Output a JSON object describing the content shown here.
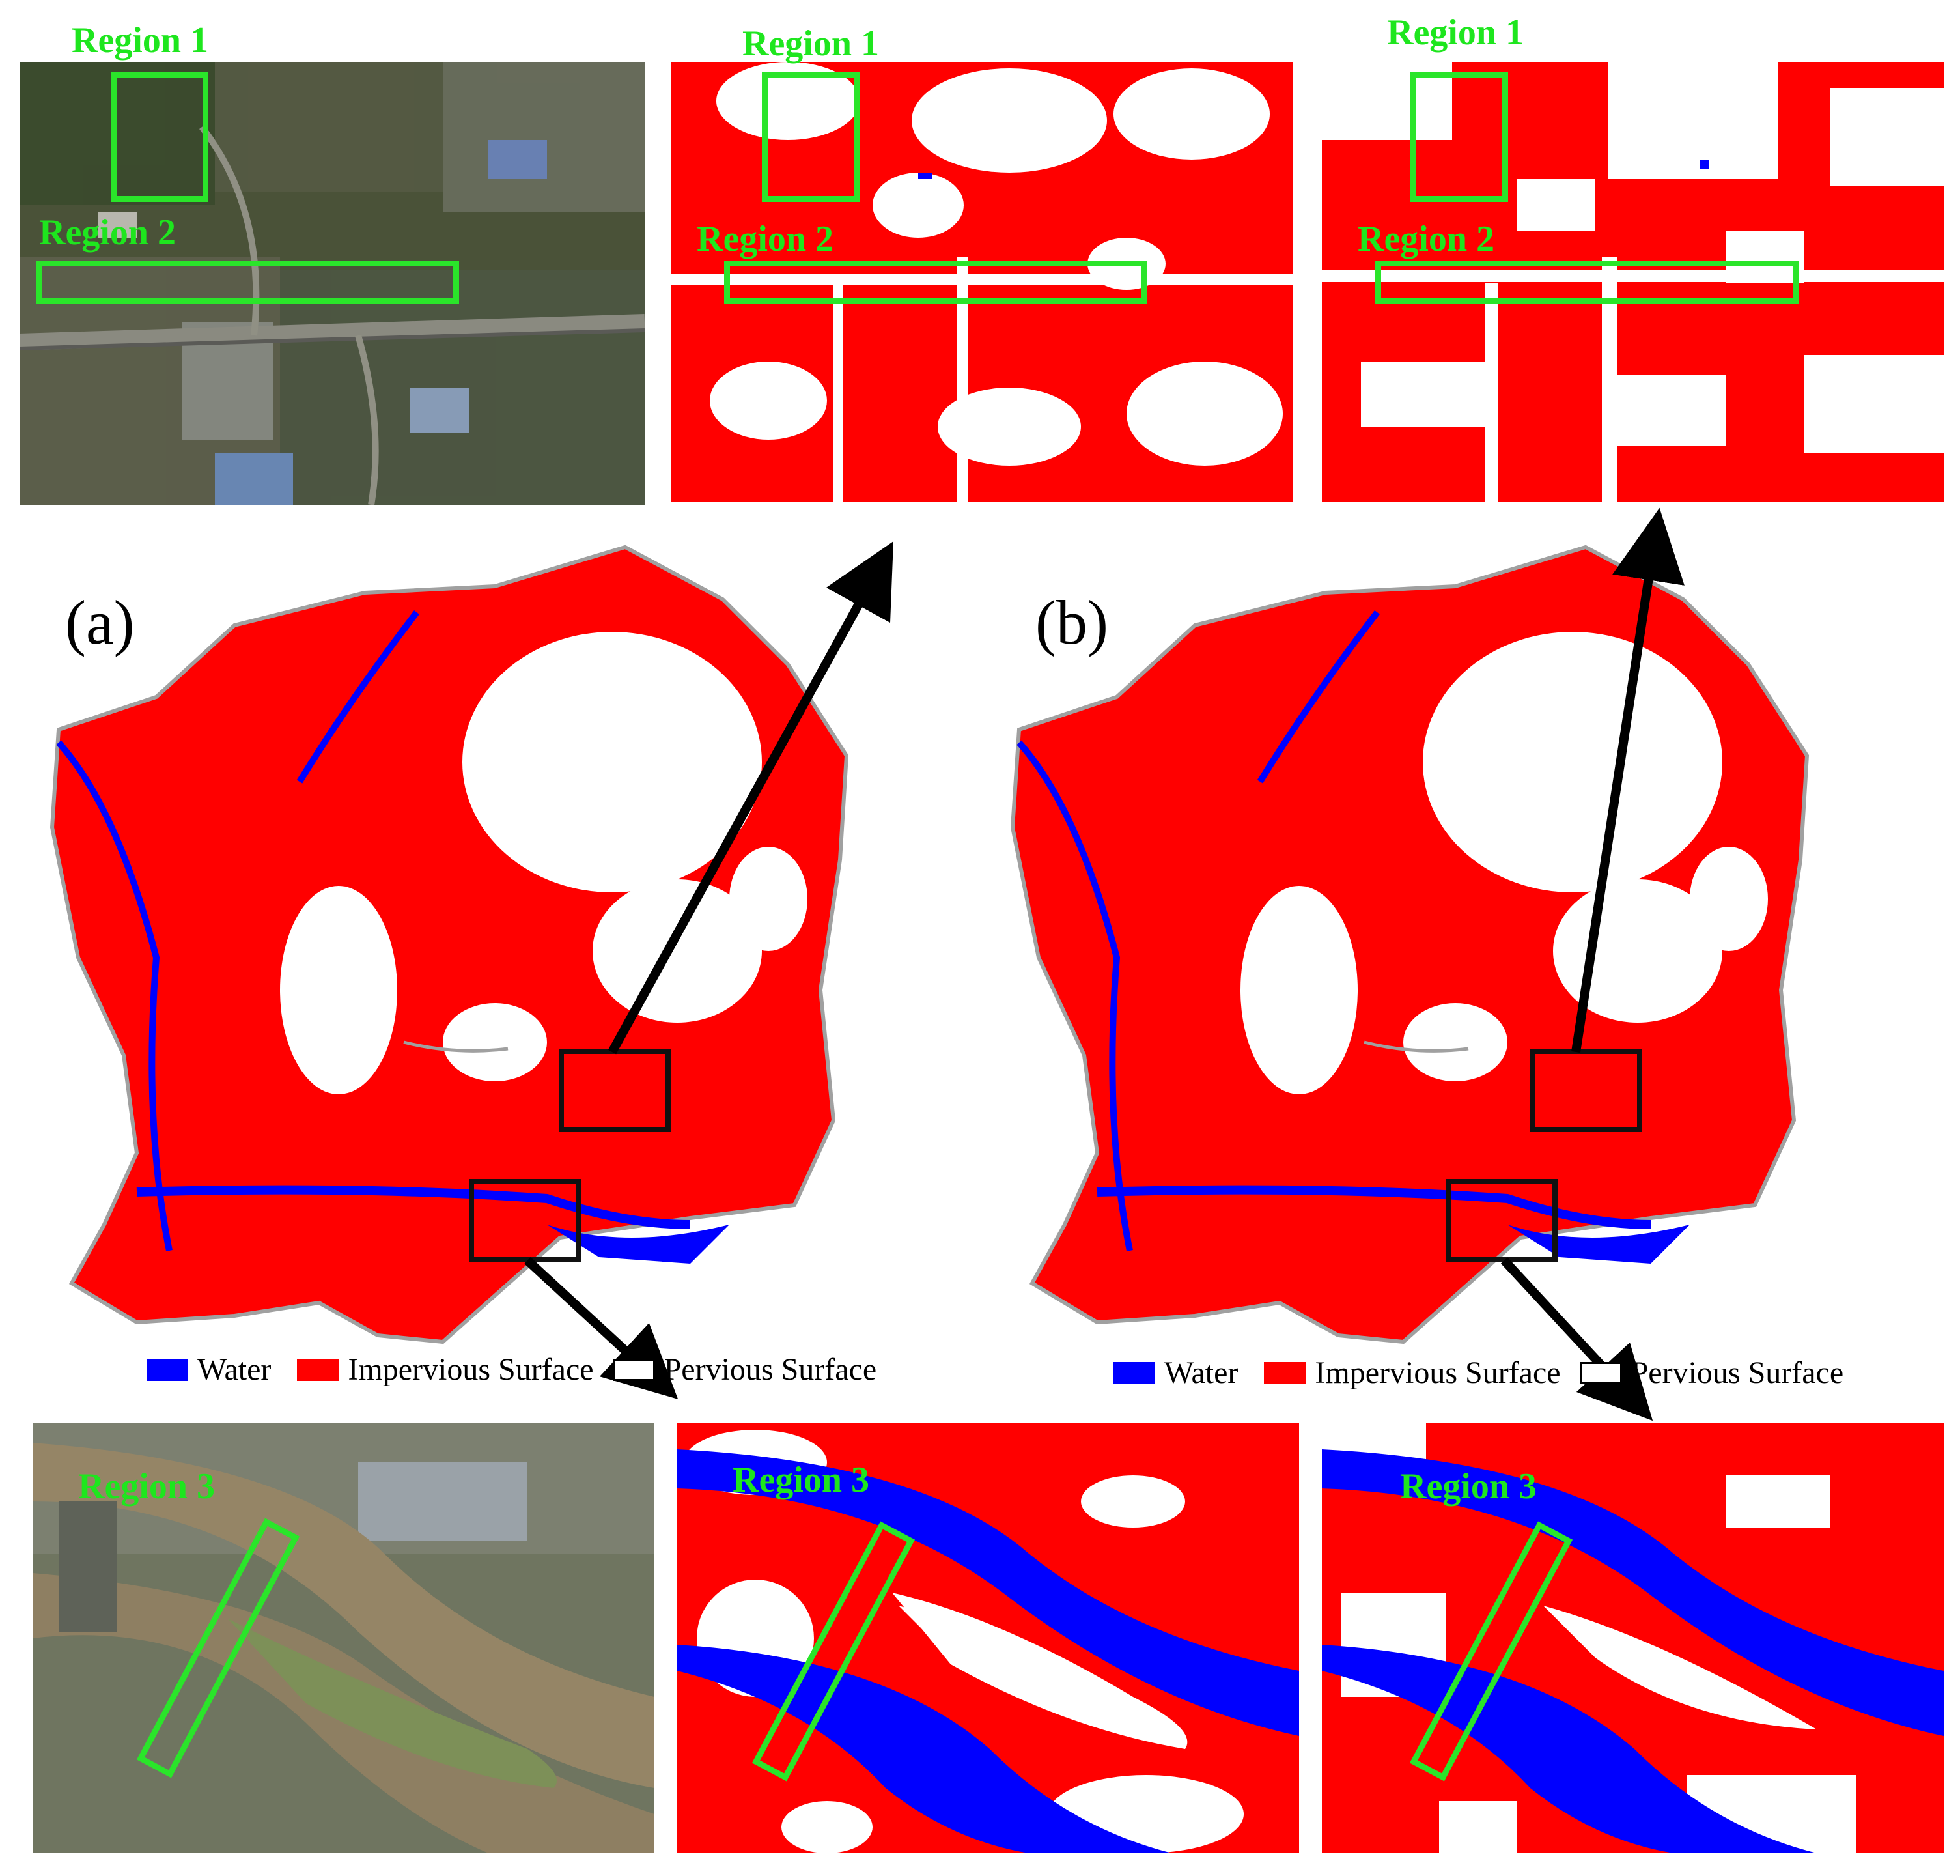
{
  "panel_labels": {
    "a": "(a)",
    "b": "(b)"
  },
  "regions": {
    "r1": "Region 1",
    "r2": "Region 2",
    "r3": "Region 3"
  },
  "legend": {
    "water": "Water",
    "impervious": "Impervious Surface",
    "pervious": "Pervious Surface"
  },
  "colors": {
    "water": "#0000ff",
    "impervious": "#ff0000",
    "pervious": "#ffffff",
    "highlight": "#2ae52a",
    "boundary": "#a0a0a0"
  }
}
